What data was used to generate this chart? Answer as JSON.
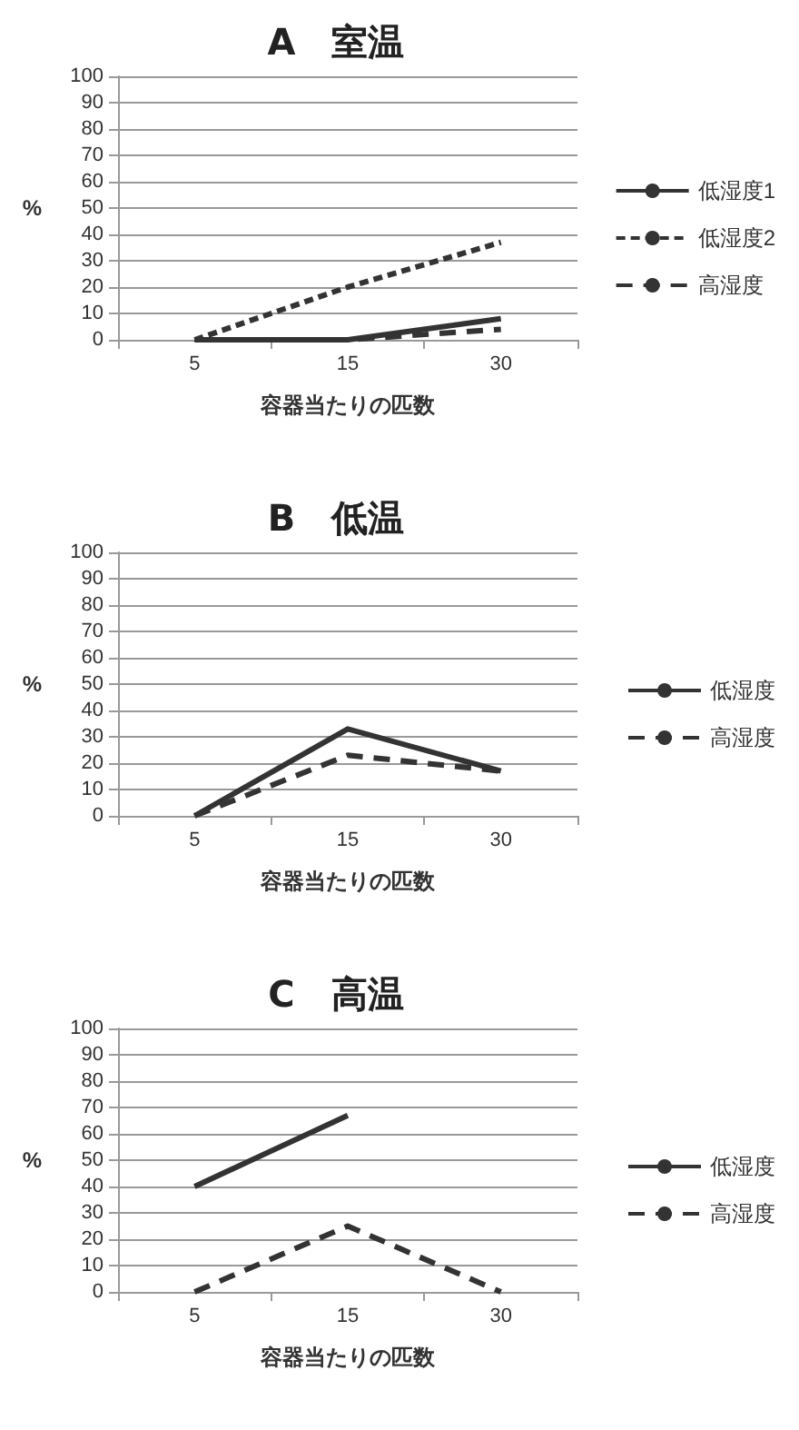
{
  "chart_data": [
    {
      "type": "line",
      "title": "A　室温",
      "xlabel": "容器当たりの匹数",
      "ylabel": "%",
      "categories": [
        "5",
        "15",
        "30"
      ],
      "ylim": [
        0,
        100
      ],
      "yticks": [
        0,
        10,
        20,
        30,
        40,
        50,
        60,
        70,
        80,
        90,
        100
      ],
      "grid": "y",
      "legend": "right",
      "marker": "none",
      "series": [
        {
          "name": "低湿度1",
          "color": "#333333",
          "line_style": "solid",
          "values": [
            0,
            0,
            8
          ]
        },
        {
          "name": "低湿度2",
          "color": "#333333",
          "line_style": "dotted",
          "values": [
            0,
            20,
            37
          ]
        },
        {
          "name": "高湿度",
          "color": "#333333",
          "line_style": "dashed",
          "values": [
            0,
            0,
            4
          ]
        }
      ]
    },
    {
      "type": "line",
      "title": "B　低温",
      "xlabel": "容器当たりの匹数",
      "ylabel": "%",
      "categories": [
        "5",
        "15",
        "30"
      ],
      "ylim": [
        0,
        100
      ],
      "yticks": [
        0,
        10,
        20,
        30,
        40,
        50,
        60,
        70,
        80,
        90,
        100
      ],
      "grid": "y",
      "legend": "right",
      "marker": "none",
      "series": [
        {
          "name": "低湿度",
          "color": "#333333",
          "line_style": "solid",
          "values": [
            0,
            33,
            17
          ]
        },
        {
          "name": "高湿度",
          "color": "#333333",
          "line_style": "dashed",
          "values": [
            0,
            23,
            17
          ]
        }
      ]
    },
    {
      "type": "line",
      "title": "C　高温",
      "xlabel": "容器当たりの匹数",
      "ylabel": "%",
      "categories": [
        "5",
        "15",
        "30"
      ],
      "ylim": [
        0,
        100
      ],
      "yticks": [
        0,
        10,
        20,
        30,
        40,
        50,
        60,
        70,
        80,
        90,
        100
      ],
      "grid": "y",
      "legend": "right",
      "marker": "none",
      "series": [
        {
          "name": "低湿度",
          "color": "#333333",
          "line_style": "solid",
          "values": [
            40,
            67,
            null
          ]
        },
        {
          "name": "高湿度",
          "color": "#333333",
          "line_style": "dashed",
          "values": [
            0,
            25,
            0
          ]
        }
      ]
    }
  ]
}
